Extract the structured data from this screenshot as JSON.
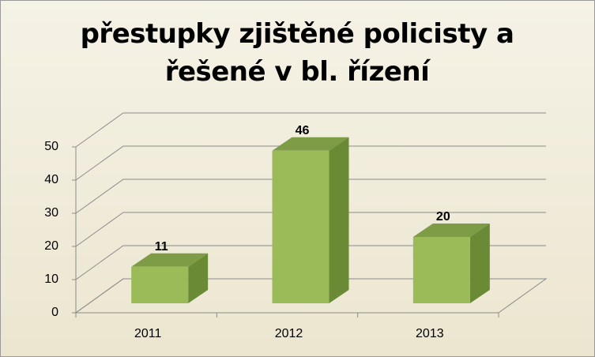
{
  "chart_data": {
    "type": "bar3d",
    "title": "přestupky zjištěné policisty a řešené v bl. řízení",
    "categories": [
      "2011",
      "2012",
      "2013"
    ],
    "values": [
      11,
      46,
      20
    ],
    "color": "#9bbb59",
    "ylim": [
      0,
      50
    ],
    "yticks": [
      0,
      10,
      20,
      30,
      40,
      50
    ],
    "grid": true
  }
}
